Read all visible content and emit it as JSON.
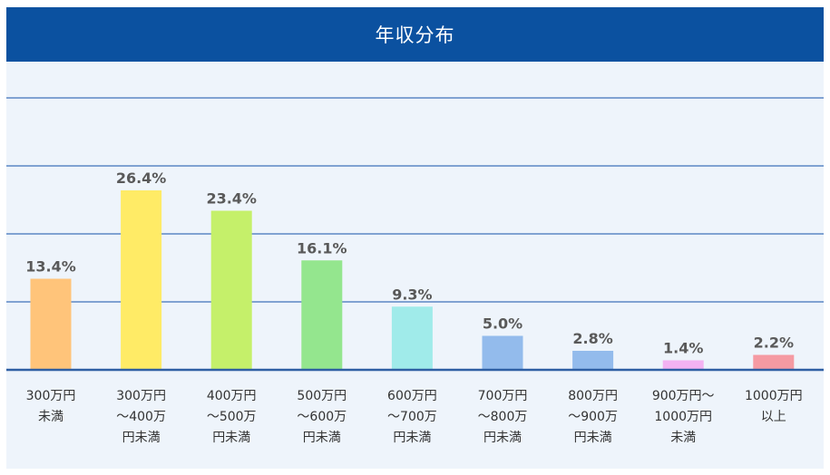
{
  "chart_data": {
    "type": "bar",
    "title": "年収分布",
    "categories": [
      [
        "300万円",
        "未満"
      ],
      [
        "300万円",
        "～400万",
        "円未満"
      ],
      [
        "400万円",
        "～500万",
        "円未満"
      ],
      [
        "500万円",
        "～600万",
        "円未満"
      ],
      [
        "600万円",
        "～700万",
        "円未満"
      ],
      [
        "700万円",
        "～800万",
        "円未満"
      ],
      [
        "800万円",
        "～900万",
        "円未満"
      ],
      [
        "900万円～",
        "1000万円",
        "未満"
      ],
      [
        "1000万円",
        "以上"
      ]
    ],
    "values": [
      13.4,
      26.4,
      23.4,
      16.1,
      9.3,
      5.0,
      2.8,
      1.4,
      2.2
    ],
    "value_labels": [
      "13.4%",
      "26.4%",
      "23.4%",
      "16.1%",
      "9.3%",
      "5.0%",
      "2.8%",
      "1.4%",
      "2.2%"
    ],
    "colors": [
      "#ffc47a",
      "#ffeb66",
      "#c5f06a",
      "#94e68e",
      "#a0ebea",
      "#93bbec",
      "#93bbec",
      "#f4b2f2",
      "#f59aa2"
    ],
    "ylim": [
      0,
      40
    ],
    "grid": true,
    "gridline_color": "#5b86c4",
    "header_color": "#0b51a0",
    "background_color": "#eef4fb"
  }
}
